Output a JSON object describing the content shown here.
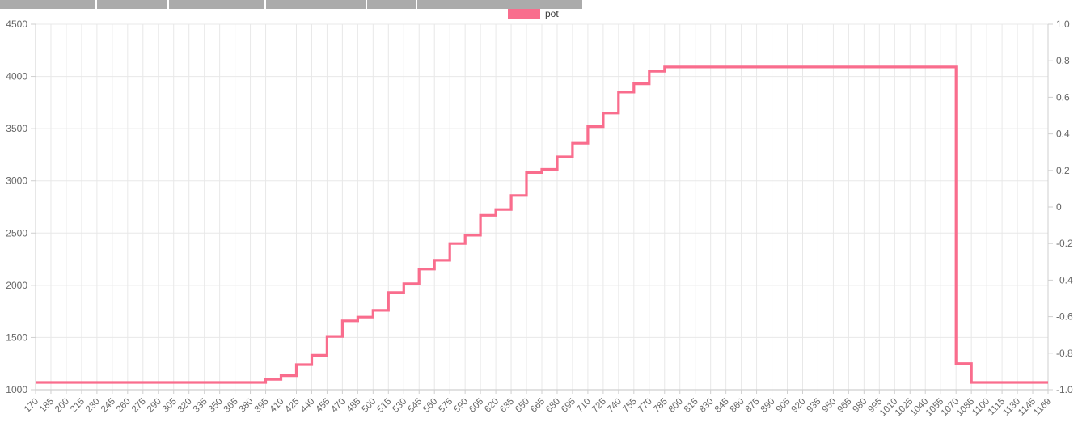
{
  "legend": {
    "label": "pot",
    "color": "#f96d8d"
  },
  "colors": {
    "line": "#f96d8d",
    "grid": "#e8e8e8",
    "axis_border": "#cfcfcf",
    "tick_text": "#666666",
    "header_bar": "#ababab"
  },
  "chart_data": {
    "type": "line",
    "stepped": true,
    "title": "",
    "xlabel": "",
    "ylabel": "",
    "legend_position": "top",
    "grid": true,
    "categories": [
      170,
      185,
      200,
      215,
      230,
      245,
      260,
      275,
      290,
      305,
      320,
      335,
      350,
      365,
      380,
      395,
      410,
      425,
      440,
      455,
      470,
      485,
      500,
      515,
      530,
      545,
      560,
      575,
      590,
      605,
      620,
      635,
      650,
      665,
      680,
      695,
      710,
      725,
      740,
      755,
      770,
      785,
      800,
      815,
      830,
      845,
      860,
      875,
      890,
      905,
      920,
      935,
      950,
      965,
      980,
      995,
      1010,
      1025,
      1040,
      1055,
      1070,
      1085,
      1100,
      1115,
      1130,
      1145,
      1169
    ],
    "series": [
      {
        "name": "pot",
        "color": "#f96d8d",
        "values": [
          1070,
          1070,
          1070,
          1070,
          1070,
          1070,
          1070,
          1070,
          1070,
          1070,
          1070,
          1070,
          1070,
          1070,
          1070,
          1100,
          1135,
          1240,
          1330,
          1510,
          1660,
          1695,
          1760,
          1930,
          2015,
          2155,
          2240,
          2400,
          2480,
          2670,
          2725,
          2860,
          3080,
          3110,
          3230,
          3360,
          3520,
          3650,
          3850,
          3930,
          4050,
          4090,
          4090,
          4090,
          4090,
          4090,
          4090,
          4090,
          4090,
          4090,
          4090,
          4090,
          4090,
          4090,
          4090,
          4090,
          4090,
          4090,
          4090,
          4090,
          1250,
          1070,
          1070,
          1070,
          1070,
          1070,
          1070
        ]
      }
    ],
    "y_left": {
      "min": 1000,
      "max": 4500,
      "step": 500,
      "ticks": [
        4500,
        4000,
        3500,
        3000,
        2500,
        2000,
        1500,
        1000
      ]
    },
    "y_right": {
      "min": -1,
      "max": 1,
      "step": 0.2,
      "ticks": [
        "1.0",
        "0.8",
        "0.6",
        "0.4",
        "0.2",
        "0",
        "-0.2",
        "-0.4",
        "-0.6",
        "-0.8",
        "-1.0"
      ]
    }
  }
}
